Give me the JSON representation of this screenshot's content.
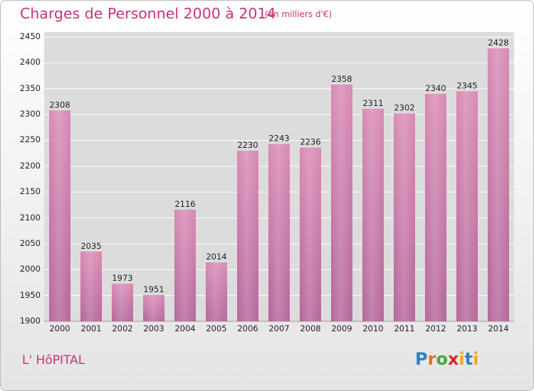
{
  "chart_data": {
    "type": "bar",
    "title": "Charges de Personnel 2000 à 2014",
    "subtitle": "(en milliers d'€)",
    "categories": [
      "2000",
      "2001",
      "2002",
      "2003",
      "2004",
      "2005",
      "2006",
      "2007",
      "2008",
      "2009",
      "2010",
      "2011",
      "2012",
      "2013",
      "2014"
    ],
    "values": [
      2308,
      2035,
      1973,
      1951,
      2116,
      2014,
      2230,
      2243,
      2236,
      2358,
      2311,
      2302,
      2340,
      2345,
      2428
    ],
    "ylim": [
      1900,
      2450
    ],
    "yticks": [
      1900,
      1950,
      2000,
      2050,
      2100,
      2150,
      2200,
      2250,
      2300,
      2350,
      2400,
      2450
    ],
    "grid": true,
    "bar_color": "#d98ab5"
  },
  "footer": {
    "commune": "L' HôPITAL",
    "brand_letters": [
      "P",
      "r",
      "o",
      "x",
      "i",
      "t",
      "i"
    ]
  }
}
